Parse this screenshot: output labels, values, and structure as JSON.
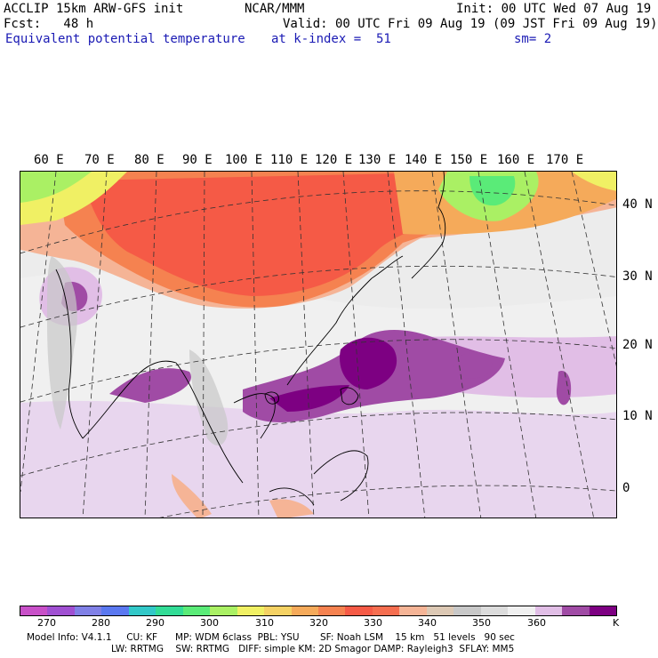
{
  "header": {
    "model_title": "ACCLIP 15km ARW-GFS init",
    "org": "NCAR/MMM",
    "init": "Init: 00 UTC Wed 07 Aug 19",
    "fcst": "Fcst:   48 h",
    "valid": "Valid: 00 UTC Fri 09 Aug 19 (09 JST Fri 09 Aug 19)",
    "field": "Equivalent potential temperature",
    "level": "at k-index =  51",
    "smoothing": "sm= 2"
  },
  "map": {
    "lon_labels": [
      "60 E",
      "70 E",
      "80 E",
      "90 E",
      "100 E",
      "110 E",
      "120 E",
      "130 E",
      "140 E",
      "150 E",
      "160 E",
      "170 E"
    ],
    "lat_labels": [
      "40 N",
      "30 N",
      "20 N",
      "10 N",
      "0"
    ]
  },
  "colorbar": {
    "colors": [
      "#c850c8",
      "#a050d2",
      "#8080e6",
      "#5a78f0",
      "#32c8c8",
      "#32dc96",
      "#5aeb78",
      "#aaf064",
      "#f0f064",
      "#f5d264",
      "#f5aa5a",
      "#f58250",
      "#f55a46",
      "#f56e50",
      "#f5b496",
      "#dcc8b4",
      "#c8c8c8",
      "#dcdcdc",
      "#f0f0f0",
      "#e1bee6",
      "#a04ba5",
      "#7d0082"
    ],
    "labels": [
      "270",
      "280",
      "290",
      "300",
      "310",
      "320",
      "330",
      "340",
      "350",
      "360",
      "K"
    ]
  },
  "footer": {
    "line1": "Model Info: V4.1.1     CU: KF      MP: WDM 6class  PBL: YSU       SF: Noah LSM    15 km   51 levels   90 sec",
    "line2": "LW: RRTMG    SW: RRTMG   DIFF: simple KM: 2D Smagor DAMP: Rayleigh3  SFLAY: MM5"
  }
}
